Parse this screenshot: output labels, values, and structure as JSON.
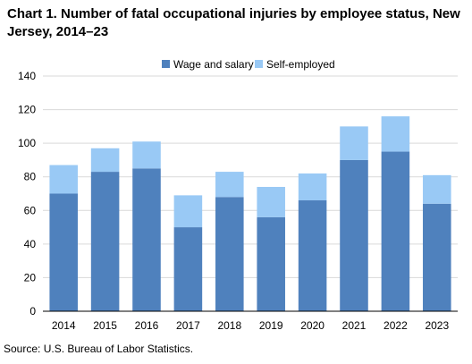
{
  "chart_data": {
    "type": "bar",
    "stacked": true,
    "title": "Chart 1. Number of fatal occupational injuries by employee status, New Jersey, 2014–23",
    "source": "Source: U.S. Bureau of Labor Statistics.",
    "categories": [
      "2014",
      "2015",
      "2016",
      "2017",
      "2018",
      "2019",
      "2020",
      "2021",
      "2022",
      "2023"
    ],
    "series": [
      {
        "name": "Wage and salary",
        "color": "#4f81bd",
        "values": [
          70,
          83,
          85,
          50,
          68,
          56,
          66,
          90,
          95,
          64
        ]
      },
      {
        "name": "Self-employed",
        "color": "#99c9f5",
        "values": [
          17,
          14,
          16,
          19,
          15,
          18,
          16,
          20,
          21,
          17
        ]
      }
    ],
    "ylim": [
      0,
      140
    ],
    "yticks": [
      0,
      20,
      40,
      60,
      80,
      100,
      120,
      140
    ],
    "xlabel": "",
    "ylabel": "",
    "grid": true,
    "legend": "top-center",
    "colors": {
      "grid": "#d9d9d9",
      "axis": "#000000"
    }
  }
}
